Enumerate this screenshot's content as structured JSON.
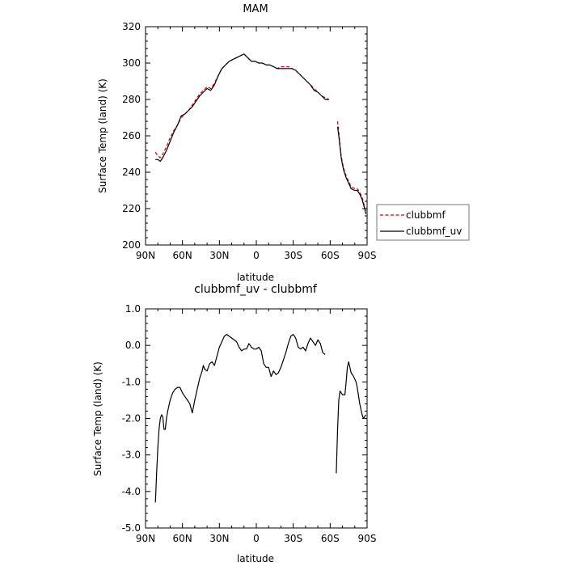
{
  "chart_data": [
    {
      "type": "line",
      "title": "MAM",
      "xlabel": "latitude",
      "ylabel": "Surface Temp (land) (K)",
      "xlim": [
        90,
        -90
      ],
      "ylim": [
        200,
        320
      ],
      "x_ticks": [
        90,
        60,
        30,
        0,
        -30,
        -60,
        -90
      ],
      "x_tick_labels": [
        "90N",
        "60N",
        "30N",
        "0",
        "30S",
        "60S",
        "90S"
      ],
      "y_ticks": [
        200,
        220,
        240,
        260,
        280,
        300,
        320
      ],
      "y_tick_labels": [
        "200",
        "220",
        "240",
        "260",
        "280",
        "300",
        "320"
      ],
      "legend_position": "right",
      "series": [
        {
          "name": "clubbmf",
          "color": "#cc0000",
          "style": "dashed",
          "segments": [
            [
              [
                82,
                251
              ],
              [
                80,
                249
              ],
              [
                78,
                248
              ],
              [
                76,
                250
              ],
              [
                73,
                254
              ],
              [
                70,
                259
              ],
              [
                67,
                263
              ],
              [
                64,
                266
              ],
              [
                61,
                270
              ],
              [
                58,
                272
              ],
              [
                55,
                274
              ],
              [
                52,
                277
              ],
              [
                49,
                280
              ],
              [
                46,
                283
              ],
              [
                43,
                285
              ],
              [
                40,
                287
              ],
              [
                37,
                286
              ],
              [
                34,
                289
              ],
              [
                31,
                293
              ],
              [
                28,
                297
              ],
              [
                25,
                299
              ],
              [
                22,
                301
              ],
              [
                19,
                302
              ],
              [
                16,
                303
              ],
              [
                13,
                304
              ],
              [
                10,
                305
              ],
              [
                7,
                303
              ],
              [
                4,
                301
              ],
              [
                1,
                301
              ],
              [
                -2,
                300
              ],
              [
                -5,
                300
              ],
              [
                -8,
                299
              ],
              [
                -11,
                299
              ],
              [
                -14,
                298
              ],
              [
                -17,
                297
              ],
              [
                -20,
                298
              ],
              [
                -23,
                298
              ],
              [
                -26,
                298
              ],
              [
                -29,
                297
              ],
              [
                -32,
                296
              ],
              [
                -35,
                294
              ],
              [
                -38,
                292
              ],
              [
                -41,
                290
              ],
              [
                -44,
                288
              ],
              [
                -47,
                286
              ],
              [
                -50,
                284
              ],
              [
                -53,
                282
              ],
              [
                -56,
                281
              ],
              [
                -59,
                280
              ]
            ],
            [
              [
                -66,
                268
              ],
              [
                -67,
                262
              ],
              [
                -68,
                255
              ],
              [
                -69,
                249
              ],
              [
                -70,
                245
              ],
              [
                -71,
                242
              ],
              [
                -73,
                238
              ],
              [
                -75,
                235
              ],
              [
                -77,
                232
              ],
              [
                -80,
                231
              ],
              [
                -82,
                231
              ],
              [
                -84,
                229
              ],
              [
                -86,
                226
              ],
              [
                -88,
                221
              ],
              [
                -89,
                218
              ]
            ]
          ]
        },
        {
          "name": "clubbmf_uv",
          "color": "#000000",
          "style": "solid",
          "segments": [
            [
              [
                82,
                247
              ],
              [
                80,
                247
              ],
              [
                78,
                246
              ],
              [
                76,
                248
              ],
              [
                73,
                252
              ],
              [
                70,
                257
              ],
              [
                67,
                262
              ],
              [
                64,
                266
              ],
              [
                61,
                271
              ],
              [
                58,
                272
              ],
              [
                55,
                274
              ],
              [
                52,
                276
              ],
              [
                49,
                279
              ],
              [
                46,
                282
              ],
              [
                43,
                284
              ],
              [
                40,
                286
              ],
              [
                37,
                285
              ],
              [
                34,
                288
              ],
              [
                31,
                293
              ],
              [
                28,
                297
              ],
              [
                25,
                299
              ],
              [
                22,
                301
              ],
              [
                19,
                302
              ],
              [
                16,
                303
              ],
              [
                13,
                304
              ],
              [
                10,
                305
              ],
              [
                7,
                303
              ],
              [
                4,
                301
              ],
              [
                1,
                301
              ],
              [
                -2,
                300
              ],
              [
                -5,
                300
              ],
              [
                -8,
                299
              ],
              [
                -11,
                299
              ],
              [
                -14,
                298
              ],
              [
                -17,
                297
              ],
              [
                -20,
                297
              ],
              [
                -23,
                297
              ],
              [
                -26,
                297
              ],
              [
                -29,
                297
              ],
              [
                -32,
                296
              ],
              [
                -35,
                294
              ],
              [
                -38,
                292
              ],
              [
                -41,
                290
              ],
              [
                -44,
                288
              ],
              [
                -47,
                285
              ],
              [
                -50,
                284
              ],
              [
                -53,
                282
              ],
              [
                -56,
                280
              ],
              [
                -59,
                280
              ]
            ],
            [
              [
                -66,
                265
              ],
              [
                -67,
                260
              ],
              [
                -68,
                254
              ],
              [
                -69,
                248
              ],
              [
                -70,
                244
              ],
              [
                -71,
                241
              ],
              [
                -73,
                237
              ],
              [
                -75,
                234
              ],
              [
                -77,
                231
              ],
              [
                -80,
                230
              ],
              [
                -82,
                230
              ],
              [
                -84,
                228
              ],
              [
                -86,
                225
              ],
              [
                -88,
                220
              ],
              [
                -89,
                217
              ]
            ]
          ]
        }
      ]
    },
    {
      "type": "line",
      "title": "clubbmf_uv - clubbmf",
      "xlabel": "latitude",
      "ylabel": "Surface Temp (land) (K)",
      "xlim": [
        90,
        -90
      ],
      "ylim": [
        -5.0,
        1.0
      ],
      "x_ticks": [
        90,
        60,
        30,
        0,
        -30,
        -60,
        -90
      ],
      "x_tick_labels": [
        "90N",
        "60N",
        "30N",
        "0",
        "30S",
        "60S",
        "90S"
      ],
      "y_ticks": [
        -5,
        -4,
        -3,
        -2,
        -1,
        0,
        1
      ],
      "y_tick_labels": [
        "-5.0",
        "-4.0",
        "-3.0",
        "-2.0",
        "-1.0",
        "0.0",
        "1.0"
      ],
      "series": [
        {
          "color": "#000000",
          "style": "solid",
          "segments": [
            [
              [
                82,
                -4.3
              ],
              [
                81,
                -3.5
              ],
              [
                80,
                -2.8
              ],
              [
                79,
                -2.3
              ],
              [
                78,
                -2.0
              ],
              [
                77,
                -1.9
              ],
              [
                76,
                -1.95
              ],
              [
                75,
                -2.3
              ],
              [
                74,
                -2.3
              ],
              [
                73,
                -2.0
              ],
              [
                72,
                -1.8
              ],
              [
                70,
                -1.5
              ],
              [
                68,
                -1.3
              ],
              [
                66,
                -1.2
              ],
              [
                64,
                -1.15
              ],
              [
                62,
                -1.15
              ],
              [
                60,
                -1.3
              ],
              [
                58,
                -1.4
              ],
              [
                56,
                -1.5
              ],
              [
                54,
                -1.6
              ],
              [
                52,
                -1.85
              ],
              [
                50,
                -1.5
              ],
              [
                48,
                -1.2
              ],
              [
                46,
                -0.9
              ],
              [
                44,
                -0.7
              ],
              [
                43,
                -0.55
              ],
              [
                42,
                -0.65
              ],
              [
                40,
                -0.7
              ],
              [
                38,
                -0.5
              ],
              [
                36,
                -0.45
              ],
              [
                34,
                -0.55
              ],
              [
                32,
                -0.3
              ],
              [
                30,
                -0.05
              ],
              [
                28,
                0.1
              ],
              [
                26,
                0.25
              ],
              [
                24,
                0.3
              ],
              [
                22,
                0.25
              ],
              [
                20,
                0.2
              ],
              [
                18,
                0.15
              ],
              [
                16,
                0.1
              ],
              [
                14,
                -0.05
              ],
              [
                12,
                -0.15
              ],
              [
                10,
                -0.1
              ],
              [
                8,
                -0.1
              ],
              [
                6,
                0.05
              ],
              [
                4,
                -0.05
              ],
              [
                2,
                -0.1
              ],
              [
                0,
                -0.1
              ],
              [
                -2,
                -0.05
              ],
              [
                -4,
                -0.15
              ],
              [
                -6,
                -0.5
              ],
              [
                -8,
                -0.6
              ],
              [
                -10,
                -0.6
              ],
              [
                -12,
                -0.85
              ],
              [
                -14,
                -0.7
              ],
              [
                -16,
                -0.8
              ],
              [
                -18,
                -0.75
              ],
              [
                -20,
                -0.6
              ],
              [
                -22,
                -0.4
              ],
              [
                -24,
                -0.2
              ],
              [
                -26,
                0.05
              ],
              [
                -28,
                0.25
              ],
              [
                -30,
                0.3
              ],
              [
                -32,
                0.2
              ],
              [
                -34,
                -0.05
              ],
              [
                -36,
                -0.1
              ],
              [
                -38,
                -0.05
              ],
              [
                -40,
                -0.15
              ],
              [
                -42,
                0.05
              ],
              [
                -44,
                0.2
              ],
              [
                -46,
                0.1
              ],
              [
                -48,
                0.0
              ],
              [
                -50,
                0.15
              ],
              [
                -52,
                0.05
              ],
              [
                -54,
                -0.2
              ],
              [
                -56,
                -0.25
              ]
            ],
            [
              [
                -65,
                -3.5
              ],
              [
                -66,
                -2.3
              ],
              [
                -67,
                -1.5
              ],
              [
                -68,
                -1.25
              ],
              [
                -70,
                -1.35
              ],
              [
                -72,
                -1.35
              ],
              [
                -73,
                -1.0
              ],
              [
                -74,
                -0.6
              ],
              [
                -75,
                -0.45
              ],
              [
                -76,
                -0.6
              ],
              [
                -77,
                -0.75
              ],
              [
                -79,
                -0.85
              ],
              [
                -81,
                -1.0
              ],
              [
                -82,
                -1.15
              ],
              [
                -84,
                -1.6
              ],
              [
                -86,
                -1.9
              ],
              [
                -87,
                -2.0
              ],
              [
                -88,
                -1.95
              ],
              [
                -89,
                -1.9
              ]
            ]
          ]
        }
      ]
    }
  ],
  "legend": {
    "items": [
      {
        "label": "clubbmf",
        "color": "#cc0000",
        "style": "dashed"
      },
      {
        "label": "clubbmf_uv",
        "color": "#000000",
        "style": "solid"
      }
    ]
  }
}
